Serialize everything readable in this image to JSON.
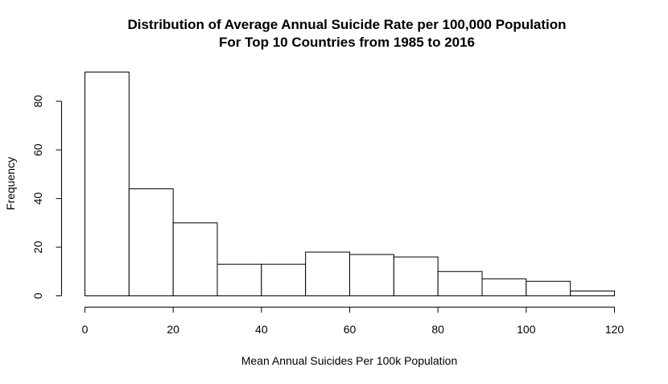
{
  "chart_data": {
    "type": "histogram",
    "title": "Distribution of Average Annual Suicide Rate per 100,000 Population",
    "subtitle": "For Top 10 Countries from 1985 to 2016",
    "xlabel": "Mean Annual Suicides Per 100k Population",
    "ylabel": "Frequency",
    "bin_edges": [
      0,
      10,
      20,
      30,
      40,
      50,
      60,
      70,
      80,
      90,
      100,
      110,
      120
    ],
    "values": [
      92,
      44,
      30,
      13,
      13,
      18,
      17,
      16,
      10,
      7,
      6,
      2
    ],
    "xlim": [
      0,
      120
    ],
    "ylim": [
      0,
      92
    ],
    "x_ticks": [
      0,
      20,
      40,
      60,
      80,
      100,
      120
    ],
    "y_ticks": [
      0,
      20,
      40,
      60,
      80
    ],
    "grid": false,
    "bar_fill": "#ffffff",
    "bar_stroke": "#000000"
  }
}
